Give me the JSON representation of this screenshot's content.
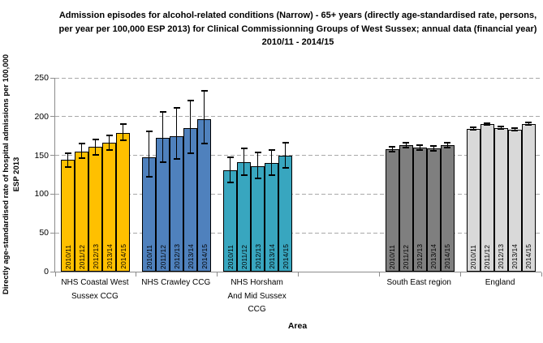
{
  "title": "Admission episodes for alcohol-related conditions (Narrow) - 65+ years (directly age-standardised rate, persons, per year per 100,000  ESP 2013)  for Clinical Commissionning Groups of West Sussex; annual data  (financial year) 2010/11  - 2014/15",
  "y_axis": {
    "label": "Directly age-standardised  rate  of hospital admissions  per 100,000 ESP 2013",
    "ticks": [
      0,
      50,
      100,
      150,
      200,
      250
    ]
  },
  "x_axis": {
    "label": "Area"
  },
  "chart_data": {
    "type": "bar",
    "title": "Admission episodes for alcohol-related conditions (Narrow) - 65+ years (directly age-standardised rate, persons, per year per 100,000 ESP 2013) for Clinical Commissionning Groups of West Sussex; annual data (financial year) 2010/11 - 2014/15",
    "xlabel": "Area",
    "ylabel": "Directly age-standardised rate of hospital admissions per 100,000 ESP 2013",
    "ylim": [
      0,
      250
    ],
    "y_ticks": [
      0,
      50,
      100,
      150,
      200,
      250
    ],
    "grid": "horizontal-dashed",
    "legend": "none",
    "error_bars": "95% confidence intervals",
    "categories": [
      "2010/11",
      "2011/12",
      "2012/13",
      "2013/14",
      "2014/15"
    ],
    "series": [
      {
        "name": "NHS Coastal West Sussex CCG",
        "label_lines": [
          "NHS Coastal West",
          "Sussex CCG"
        ],
        "color": "#FFC000",
        "values": [
          144,
          155,
          161,
          166,
          179
        ],
        "ci_low": [
          135,
          146,
          151,
          157,
          169
        ],
        "ci_high": [
          153,
          165,
          171,
          176,
          190
        ]
      },
      {
        "name": "NHS Crawley CCG",
        "label_lines": [
          "NHS Crawley CCG"
        ],
        "color": "#4F81BD",
        "values": [
          148,
          173,
          175,
          185,
          197
        ],
        "ci_low": [
          122,
          141,
          145,
          153,
          165
        ],
        "ci_high": [
          181,
          206,
          211,
          221,
          233
        ]
      },
      {
        "name": "NHS Horsham And Mid Sussex CCG",
        "label_lines": [
          "NHS Horsham",
          "And Mid Sussex",
          "CCG"
        ],
        "color": "#38A6BF",
        "values": [
          131,
          141,
          136,
          140,
          150
        ],
        "ci_low": [
          115,
          125,
          120,
          124,
          134
        ],
        "ci_high": [
          148,
          159,
          154,
          157,
          166
        ]
      },
      {
        "name": "",
        "label_lines": [],
        "color": "",
        "values": [],
        "ci_low": [],
        "ci_high": []
      },
      {
        "name": "South East region",
        "label_lines": [
          "South East region"
        ],
        "color": "#7F7F7F",
        "values": [
          158,
          163,
          160,
          159,
          163
        ],
        "ci_low": [
          155,
          160,
          157,
          156,
          160
        ],
        "ci_high": [
          161,
          166,
          163,
          162,
          166
        ]
      },
      {
        "name": "England",
        "label_lines": [
          "England"
        ],
        "color": "#D9D9D9",
        "values": [
          184,
          190,
          185,
          183,
          190
        ],
        "ci_low": [
          183,
          189,
          184,
          182,
          189
        ],
        "ci_high": [
          186,
          191,
          187,
          185,
          192
        ]
      }
    ]
  }
}
